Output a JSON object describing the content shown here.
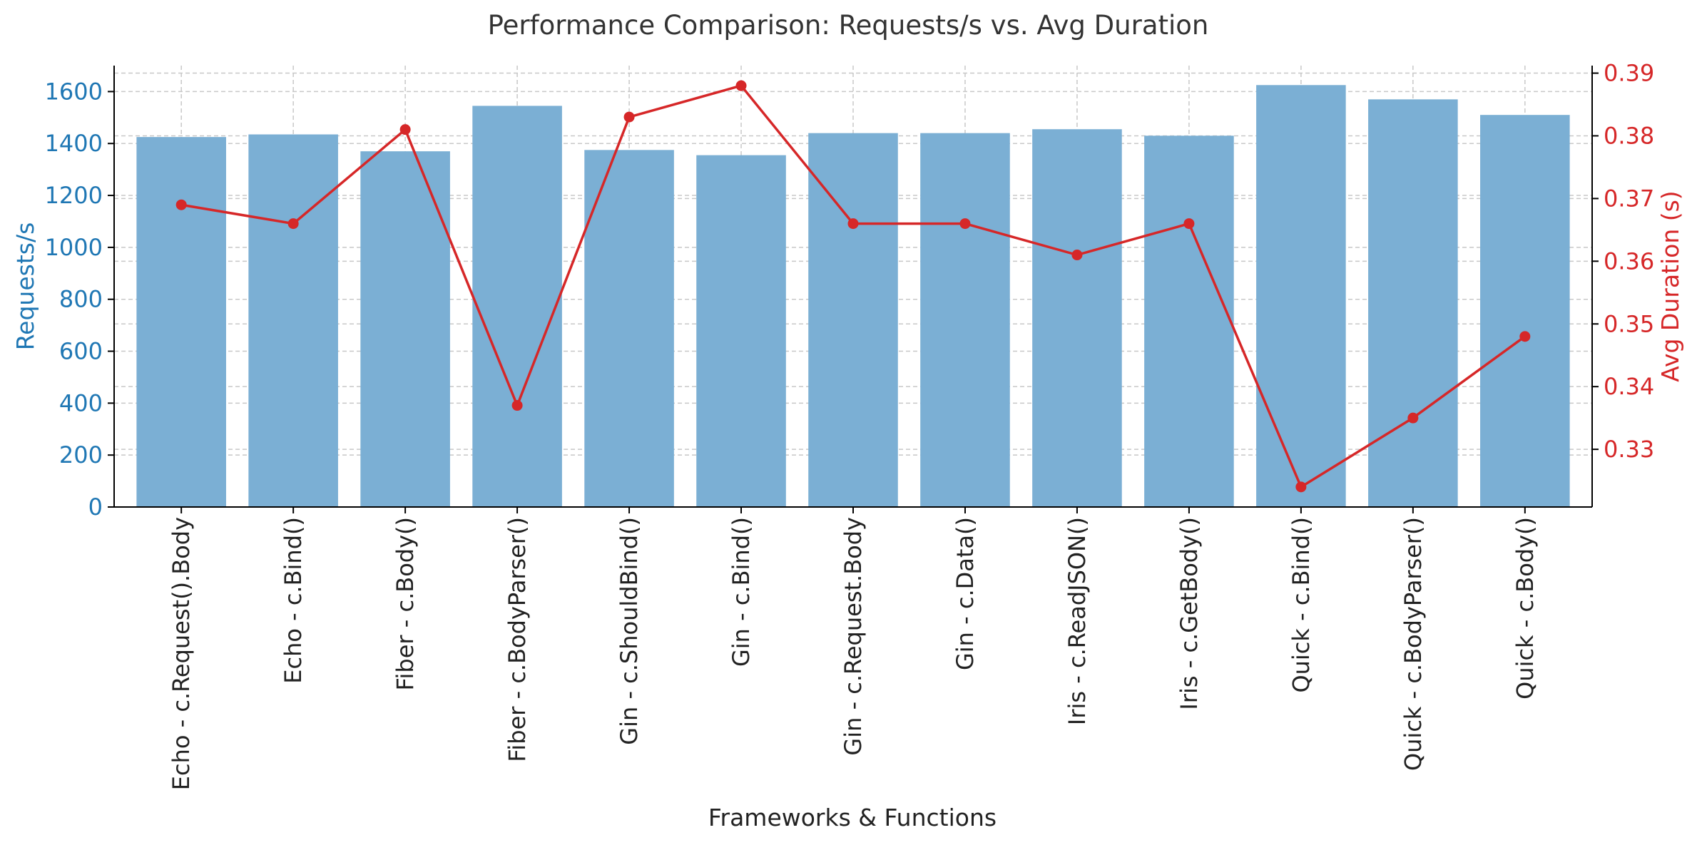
{
  "chart_data": {
    "type": "bar",
    "title": "Performance Comparison: Requests/s vs. Avg Duration",
    "xlabel": "Frameworks & Functions",
    "categories": [
      "Echo - c.Request().Body",
      "Echo - c.Bind()",
      "Fiber - c.Body()",
      "Fiber - c.BodyParser()",
      "Gin - c.ShouldBind()",
      "Gin - c.Bind()",
      "Gin - c.Request.Body",
      "Gin - c.Data()",
      "Iris - c.ReadJSON()",
      "Iris - c.GetBody()",
      "Quick - c.Bind()",
      "Quick - c.BodyParser()",
      "Quick - c.Body()"
    ],
    "series": [
      {
        "name": "Requests/s",
        "type": "bar",
        "axis": "left",
        "values": [
          1425,
          1435,
          1370,
          1545,
          1375,
          1355,
          1440,
          1440,
          1455,
          1430,
          1625,
          1570,
          1510
        ]
      },
      {
        "name": "Avg Duration (s)",
        "type": "line",
        "axis": "right",
        "values": [
          0.369,
          0.366,
          0.381,
          0.337,
          0.383,
          0.388,
          0.366,
          0.366,
          0.361,
          0.366,
          0.324,
          0.335,
          0.348
        ]
      }
    ],
    "left_axis": {
      "label": "Requests/s",
      "ylim": [
        0,
        1700
      ],
      "ticks": [
        0,
        200,
        400,
        600,
        800,
        1000,
        1200,
        1400,
        1600
      ],
      "tick_labels": [
        "0",
        "200",
        "400",
        "600",
        "800",
        "1000",
        "1200",
        "1400",
        "1600"
      ]
    },
    "right_axis": {
      "label": "Avg Duration (s)",
      "ylim": [
        0.3208,
        0.3912
      ],
      "ticks": [
        0.33,
        0.34,
        0.35,
        0.36,
        0.37,
        0.38,
        0.39
      ],
      "tick_labels": [
        "0.33",
        "0.34",
        "0.35",
        "0.36",
        "0.37",
        "0.38",
        "0.39"
      ]
    },
    "grid": true,
    "colors": {
      "bar": "#7bafd4",
      "line": "#d62728",
      "left_axis": "#1f77b4",
      "right_axis": "#d62728",
      "grid": "#c8c8c8",
      "axis": "#000000",
      "text": "#222222"
    }
  }
}
